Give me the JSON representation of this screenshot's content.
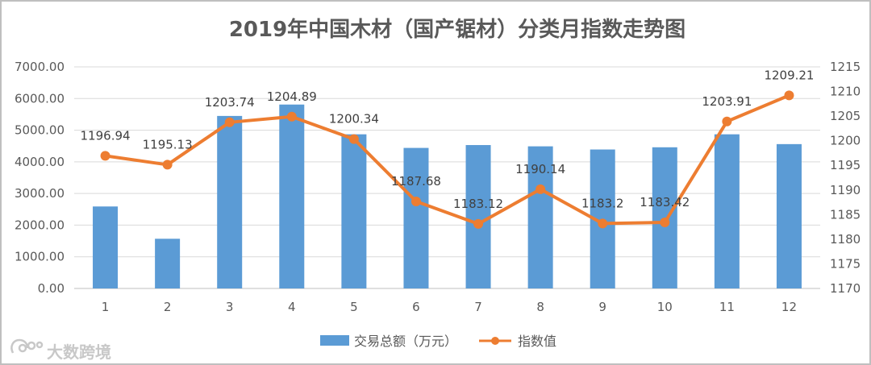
{
  "chart_data": {
    "type": "bar",
    "title": "2019年中国木材（国产锯材）分类月指数走势图",
    "categories": [
      "1",
      "2",
      "3",
      "4",
      "5",
      "6",
      "7",
      "8",
      "9",
      "10",
      "11",
      "12"
    ],
    "series": [
      {
        "name": "交易总额（万元）",
        "type": "bar",
        "axis": "left",
        "color": "#5b9bd5",
        "values": [
          2590,
          1570,
          5450,
          5810,
          4870,
          4440,
          4530,
          4490,
          4390,
          4460,
          4870,
          4560
        ]
      },
      {
        "name": "指数值",
        "type": "line",
        "axis": "right",
        "color": "#ed7d31",
        "values": [
          1196.94,
          1195.13,
          1203.74,
          1204.89,
          1200.34,
          1187.68,
          1183.12,
          1190.14,
          1183.2,
          1183.42,
          1203.91,
          1209.21
        ],
        "labels": [
          "1196.94",
          "1195.13",
          "1203.74",
          "1204.89",
          "1200.34",
          "1187.68",
          "1183.12",
          "1190.14",
          "1183.2",
          "1183.42",
          "1203.91",
          "1209.21"
        ]
      }
    ],
    "y_left": {
      "ylim": [
        0,
        7000
      ],
      "ticks": [
        0,
        1000,
        2000,
        3000,
        4000,
        5000,
        6000,
        7000
      ],
      "tick_labels": [
        "0.00",
        "1000.00",
        "2000.00",
        "3000.00",
        "4000.00",
        "5000.00",
        "6000.00",
        "7000.00"
      ]
    },
    "y_right": {
      "ylim": [
        1170,
        1215
      ],
      "ticks": [
        1170,
        1175,
        1180,
        1185,
        1190,
        1195,
        1200,
        1205,
        1210,
        1215
      ],
      "tick_labels": [
        "1170",
        "1175",
        "1180",
        "1185",
        "1190",
        "1195",
        "1200",
        "1205",
        "1210",
        "1215"
      ]
    },
    "grid": true,
    "legend": "bottom"
  },
  "watermark": {
    "text": "大数跨境",
    "icon": "brand-logo-icon"
  }
}
